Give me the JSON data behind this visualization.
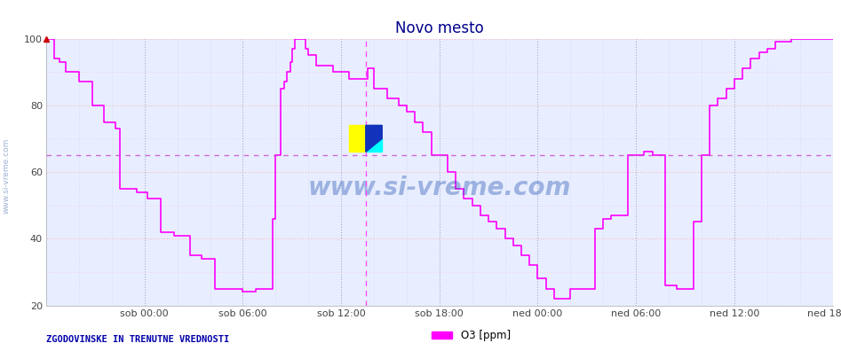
{
  "title": "Novo mesto",
  "title_color": "#00008B",
  "title_fontsize": 12,
  "ylim": [
    20,
    100
  ],
  "yticks": [
    20,
    40,
    60,
    80,
    100
  ],
  "xtick_labels": [
    "sob 00:00",
    "sob 06:00",
    "sob 12:00",
    "sob 18:00",
    "ned 00:00",
    "ned 06:00",
    "ned 12:00",
    "ned 18:00"
  ],
  "xtick_positions": [
    6,
    12,
    18,
    24,
    30,
    36,
    42,
    48
  ],
  "line_color": "#FF00FF",
  "line_width": 1.2,
  "bg_color": "#E8EEFF",
  "fig_bg_color": "#FFFFFF",
  "hline_y": 65,
  "hline_color": "#CC44CC",
  "hline_style": "--",
  "vline_color": "#FF44FF",
  "vline_style": "--",
  "vline_hour": 19.5,
  "h_grid_color": "#FFB6C1",
  "h_grid_style": ":",
  "v_grid_color": "#AAAACC",
  "v_grid_style": ":",
  "footer_text": "ZGODOVINSKE IN TRENUTNE VREDNOSTI",
  "footer_color": "#0000AA",
  "legend_label": "O3 [ppm]",
  "legend_color": "#FF00FF",
  "watermark_text": "www.si-vreme.com",
  "left_text": "www.si-vreme.com",
  "o3_data": [
    [
      0.0,
      100
    ],
    [
      0.3,
      100
    ],
    [
      0.5,
      94
    ],
    [
      0.8,
      93
    ],
    [
      1.2,
      90
    ],
    [
      1.8,
      90
    ],
    [
      2.0,
      87
    ],
    [
      2.5,
      87
    ],
    [
      2.8,
      80
    ],
    [
      3.2,
      80
    ],
    [
      3.5,
      75
    ],
    [
      4.0,
      75
    ],
    [
      4.2,
      73
    ],
    [
      4.5,
      55
    ],
    [
      5.0,
      55
    ],
    [
      5.5,
      54
    ],
    [
      6.0,
      54
    ],
    [
      6.2,
      52
    ],
    [
      6.8,
      52
    ],
    [
      7.0,
      42
    ],
    [
      7.5,
      42
    ],
    [
      7.8,
      41
    ],
    [
      8.5,
      41
    ],
    [
      8.8,
      35
    ],
    [
      9.2,
      35
    ],
    [
      9.5,
      34
    ],
    [
      10.0,
      34
    ],
    [
      10.3,
      25
    ],
    [
      11.5,
      25
    ],
    [
      11.8,
      25
    ],
    [
      12.0,
      24
    ],
    [
      12.5,
      24
    ],
    [
      12.8,
      25
    ],
    [
      13.5,
      25
    ],
    [
      13.8,
      46
    ],
    [
      14.0,
      65
    ],
    [
      14.2,
      65
    ],
    [
      14.3,
      85
    ],
    [
      14.5,
      87
    ],
    [
      14.7,
      90
    ],
    [
      14.9,
      93
    ],
    [
      15.0,
      97
    ],
    [
      15.2,
      100
    ],
    [
      15.5,
      100
    ],
    [
      15.8,
      97
    ],
    [
      16.0,
      95
    ],
    [
      16.2,
      95
    ],
    [
      16.5,
      92
    ],
    [
      17.0,
      92
    ],
    [
      17.5,
      90
    ],
    [
      18.0,
      90
    ],
    [
      18.5,
      88
    ],
    [
      19.0,
      88
    ],
    [
      19.5,
      88
    ],
    [
      19.6,
      91
    ],
    [
      19.8,
      91
    ],
    [
      20.0,
      85
    ],
    [
      20.5,
      85
    ],
    [
      20.8,
      82
    ],
    [
      21.0,
      82
    ],
    [
      21.5,
      80
    ],
    [
      22.0,
      78
    ],
    [
      22.5,
      75
    ],
    [
      23.0,
      72
    ],
    [
      23.5,
      65
    ],
    [
      24.0,
      65
    ],
    [
      24.5,
      60
    ],
    [
      25.0,
      55
    ],
    [
      25.5,
      52
    ],
    [
      26.0,
      50
    ],
    [
      26.5,
      47
    ],
    [
      27.0,
      45
    ],
    [
      27.5,
      43
    ],
    [
      28.0,
      40
    ],
    [
      28.5,
      38
    ],
    [
      29.0,
      35
    ],
    [
      29.5,
      32
    ],
    [
      30.0,
      28
    ],
    [
      30.5,
      25
    ],
    [
      31.0,
      22
    ],
    [
      31.5,
      22
    ],
    [
      32.0,
      25
    ],
    [
      33.0,
      25
    ],
    [
      33.5,
      43
    ],
    [
      34.0,
      46
    ],
    [
      34.5,
      47
    ],
    [
      35.0,
      47
    ],
    [
      35.5,
      65
    ],
    [
      36.0,
      65
    ],
    [
      36.5,
      66
    ],
    [
      37.0,
      65
    ],
    [
      37.5,
      65
    ],
    [
      37.8,
      26
    ],
    [
      38.0,
      26
    ],
    [
      38.5,
      25
    ],
    [
      39.0,
      25
    ],
    [
      39.5,
      45
    ],
    [
      40.0,
      65
    ],
    [
      40.5,
      80
    ],
    [
      41.0,
      82
    ],
    [
      41.5,
      85
    ],
    [
      42.0,
      88
    ],
    [
      42.5,
      91
    ],
    [
      43.0,
      94
    ],
    [
      43.5,
      96
    ],
    [
      44.0,
      97
    ],
    [
      44.5,
      99
    ],
    [
      45.0,
      99
    ],
    [
      45.5,
      100
    ],
    [
      46.0,
      100
    ],
    [
      47.0,
      100
    ],
    [
      48.0,
      100
    ]
  ],
  "icon_hour": 19.5,
  "icon_ymin": 66,
  "icon_ymax": 74
}
